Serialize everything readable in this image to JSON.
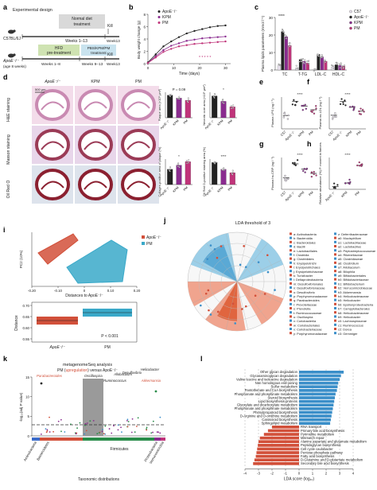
{
  "panels": {
    "a": {
      "letter": "a",
      "title": "Experimental design",
      "normal_diet": "Normal diet",
      "treatment": "treatment",
      "c57": "C57BL/6J",
      "kill": "Kill",
      "weeks_1_13": "Weeks 1–13",
      "week13": "Week13",
      "hfd": "HFD",
      "pretreatment": "pre-treatment",
      "pbs_kpm_pm": "PBS/KPM/PM",
      "apoe": "ApoE⁻/⁻",
      "age": "(age 8 weeks)",
      "weeks_1_8": "Weeks 1–8",
      "weeks_9_13": "Weeks 9–13"
    },
    "b": {
      "letter": "b",
      "ylabel": "Body weight change (g)",
      "xlabel": "Time (days)",
      "legend": [
        "ApoE⁻/⁻",
        "KPM",
        "PM"
      ],
      "yticks": [
        "8",
        "6",
        "4",
        "2",
        "0"
      ],
      "xticks": [
        "0",
        "10",
        "20",
        "30"
      ]
    },
    "c": {
      "letter": "c",
      "ylabel": "Plasma lipids parameters (mmol l⁻¹)",
      "yticks": [
        "30",
        "20",
        "10",
        "0"
      ],
      "categories": [
        "TC",
        "T-TG",
        "LDL-C",
        "HDL-C"
      ],
      "legend": [
        "C57",
        "ApoE⁻/⁻",
        "KPM",
        "PM"
      ]
    },
    "d": {
      "letter": "d",
      "cols": [
        "ApoE⁻/⁻",
        "KPM",
        "PM"
      ],
      "rows": [
        "H&E staining",
        "Masson staining",
        "Oil Red O"
      ],
      "scale": "500 μm",
      "plaque_ylabel": "Plaque area (×10⁵ μm²)",
      "plaque_p": "P = 0.09",
      "necrotic_ylabel": "Necrotic core area (×10⁵ μm²)",
      "collagen_ylabel": "Collagen-positive area of plaque (%)",
      "oilred_ylabel": "Oil Red O-positive staining area (%)",
      "xcats": [
        "ApoE⁻/⁻",
        "KPM",
        "PM"
      ]
    },
    "e": {
      "letter": "e",
      "ylabel": "Plasma LPS (ng l⁻¹)",
      "xcats": [
        "C57",
        "ApoE⁻/⁻",
        "KPM",
        "PM"
      ]
    },
    "f": {
      "letter": "f",
      "ylabel": "Plasma ox-LDL (ng l⁻¹)",
      "xcats": [
        "C57",
        "ApoE⁻/⁻",
        "KPM",
        "PM"
      ]
    },
    "g": {
      "letter": "g",
      "ylabel": "Plasma hs-CRP (ng l⁻¹)",
      "xcats": [
        "C57",
        "ApoE⁻/⁻",
        "KPM",
        "PM"
      ]
    },
    "h": {
      "letter": "h",
      "ylabel": "Relative abundance (%) P. moorei in faeces",
      "xcats": [
        "ApoE⁻/⁻",
        "KPM",
        "PM"
      ]
    },
    "i": {
      "letter": "i",
      "legend": [
        "ApoE⁻/⁻",
        "PM"
      ],
      "ylabel": "PC2 (10%)",
      "xlabel": "Distances to ApoE⁻/⁻",
      "xticks": [
        "-0.20",
        "-0.10",
        "0",
        "0.10",
        "0.20"
      ],
      "dist_label": "Distance",
      "dist_yticks": [
        "0.70",
        "0.65",
        "0.60",
        "0.55"
      ],
      "xcats": [
        "ApoE⁻/⁻",
        "PM"
      ],
      "pval": "P < 0.001"
    },
    "j": {
      "letter": "j",
      "title": "LDA threshold of 3",
      "left_legend": [
        "a: Actinobacteria",
        "b: Bacteroidia",
        "c: Bacteroidales",
        "d: Bacilli",
        "e: Lactobacillales",
        "f: Clostridia",
        "g: Clostridiales",
        "h: Erysipelotrichi",
        "i: Erysipelotrichales",
        "j: Erysipelotrichaceae",
        "k: Turicibacter",
        "l: Deltaproteobacteria",
        "m: Desulfovibrionales",
        "n: Desulfovibrionaceae",
        "o: Desulfovibrio",
        "p: Porphyromonadaceae",
        "q: Parabacteroides",
        "r: Prevotellaceae",
        "s: Prevotella",
        "t: Ruminococcaceae",
        "u: Oscillospira",
        "v: Coriobacteriia",
        "w: Coriobacteriales",
        "x: Coriobacteriaceae",
        "y: Porphyromonadaceae"
      ],
      "right_legend": [
        "z: Deferribacteraceae",
        "a0: Mucispirillum",
        "a1: Lactobacillaceae",
        "a2: Lactobacillus",
        "a3: Peptostreptococcaceae",
        "a4: Rikenellaceae",
        "a5: Clostridiaceae",
        "a6: Clostridium",
        "a7: Allobaculum",
        "a8: Bilophila",
        "a9: Bifidobacteriales",
        "b0: Bifidobacteriaceae",
        "b1: Bifidobacterium",
        "b2: Verrucomicrobiaceae",
        "b3: Akkermansia",
        "b4: Helicobacteraceae",
        "b5: Helicobacter",
        "b6: Epsilonproteobacteria",
        "b7: Campylobacterales",
        "b8: Helicobacteraceae",
        "b9: Helicobacter",
        "c0: Lachnospiraceae",
        "c1: Ruminococcus",
        "c2: Dorea",
        "c3: Gemmiger"
      ]
    },
    "k": {
      "letter": "k",
      "title": "metagenomeSeq analysis",
      "subtitle_pre": "PM (",
      "subtitle_up": "upregulation",
      "subtitle_post": ") versus ApoE⁻/⁻",
      "ylabel": "-log₁₀(adj P value)",
      "yticks": [
        "15",
        "10",
        "5",
        "0"
      ],
      "xlabel": "Taxonomic distributions",
      "annotations": [
        "Parabacteroides",
        "Oscillospira",
        "Ruminococcus",
        "Allobaculum",
        "Desulfovibrio",
        "Helicobacter",
        "Akkermansia"
      ],
      "phyla": [
        "Actinobacteria",
        "Bacteroidetes",
        "Firmicutes",
        "Proteobacteria",
        "Verrucomicrobia"
      ]
    },
    "l": {
      "letter": "l",
      "xlabel": "LDA score (log₁₀)",
      "xticks": [
        "-4",
        "-3",
        "-2",
        "-1",
        "0",
        "1",
        "2",
        "3",
        "4"
      ],
      "pathways_pos": [
        "Other glycan degradation",
        "Glycosaminoglycan degradation",
        "Valine leucine and isoleucine degradation",
        "Non homologous end-joining",
        "Sulfur metabolism",
        "Pantothenate and CoA biosynthesis",
        "Phosphonate and phosphinate metabolism",
        "Steroid biosynthesis",
        "Lipid biosynthesis proteins",
        "Glyoxylate and dicarboxylate metabolism",
        "Phosphonate and phosphinate metabolism",
        "Phenylpropanoid biosynthesis",
        "D-Arginine and D-ornithine metabolism",
        "Carotenoid biosynthesis",
        "Sphingolipid metabolism"
      ],
      "pathways_neg": [
        "RNA transport",
        "Primary bile acid biosynthesis",
        "Pyrimidine metabolism",
        "Mismatch repair",
        "Alanine aspartate and glutamate metabolism",
        "Peptidoglycan biosynthesis",
        "Cell cycle caulobacter",
        "Pentose phosphate pathway",
        "Fatty acid biosynthesis",
        "D-Glutamine and D-glutamate metabolism",
        "Secondary bile acid biosynthesis"
      ]
    }
  },
  "chart_data": [
    {
      "type": "line",
      "panel": "b",
      "xlabel": "Time (days)",
      "ylabel": "Body weight change (g)",
      "x": [
        0,
        3,
        6,
        9,
        12,
        15,
        18,
        21,
        24,
        27,
        30
      ],
      "xlim": [
        0,
        32
      ],
      "ylim": [
        0,
        8
      ],
      "series": [
        {
          "name": "ApoE⁻/⁻",
          "color": "#222222",
          "values": [
            0.2,
            1.5,
            2.8,
            3.6,
            4.3,
            4.9,
            5.3,
            5.6,
            5.9,
            6.1,
            6.2
          ]
        },
        {
          "name": "KPM",
          "color": "#8a2b8f",
          "values": [
            0.1,
            1.2,
            2.2,
            2.9,
            3.3,
            3.7,
            3.9,
            4.1,
            4.2,
            4.3,
            4.4
          ]
        },
        {
          "name": "PM",
          "color": "#c0347a",
          "values": [
            0.1,
            1.0,
            1.9,
            2.4,
            2.8,
            3.0,
            3.2,
            3.3,
            3.4,
            3.5,
            3.6
          ]
        }
      ]
    },
    {
      "type": "bar",
      "panel": "c",
      "categories": [
        "TC",
        "T-TG",
        "LDL-C",
        "HDL-C"
      ],
      "ylim": [
        0,
        30
      ],
      "series": [
        {
          "name": "C57",
          "color": "#e9e2ee",
          "values": [
            2.5,
            1.2,
            0.6,
            1.8
          ]
        },
        {
          "name": "ApoE⁻/⁻",
          "color": "#222222",
          "values": [
            22,
            6,
            9,
            3
          ]
        },
        {
          "name": "KPM",
          "color": "#8a2b8f",
          "values": [
            19,
            5,
            7.5,
            2.6
          ]
        },
        {
          "name": "PM",
          "color": "#c0347a",
          "values": [
            14,
            4,
            5,
            2.2
          ]
        }
      ]
    },
    {
      "type": "bar",
      "panel": "d-plaque",
      "categories": [
        "ApoE⁻/⁻",
        "KPM",
        "PM"
      ],
      "values": [
        3.1,
        2.7,
        2.4
      ]
    },
    {
      "type": "bar",
      "panel": "d-necrotic",
      "categories": [
        "ApoE⁻/⁻",
        "KPM",
        "PM"
      ],
      "values": [
        1.2,
        0.9,
        0.6
      ]
    },
    {
      "type": "bar",
      "panel": "d-collagen",
      "categories": [
        "ApoE⁻/⁻",
        "KPM",
        "PM"
      ],
      "values": [
        30,
        38,
        45
      ]
    },
    {
      "type": "bar",
      "panel": "d-oilred",
      "categories": [
        "ApoE⁻/⁻",
        "KPM",
        "PM"
      ],
      "values": [
        26,
        18,
        14
      ]
    },
    {
      "type": "bar",
      "panel": "e",
      "categories": [
        "C57",
        "ApoE⁻/⁻",
        "KPM",
        "PM"
      ],
      "values": [
        250,
        520,
        430,
        360
      ]
    },
    {
      "type": "bar",
      "panel": "f",
      "categories": [
        "C57",
        "ApoE⁻/⁻",
        "KPM",
        "PM"
      ],
      "values": [
        60,
        120,
        95,
        78
      ]
    },
    {
      "type": "bar",
      "panel": "g",
      "categories": [
        "C57",
        "ApoE⁻/⁻",
        "KPM",
        "PM"
      ],
      "values": [
        1.1,
        2.4,
        1.9,
        1.5
      ]
    },
    {
      "type": "bar",
      "panel": "h",
      "categories": [
        "ApoE⁻/⁻",
        "KPM",
        "PM"
      ],
      "values": [
        0.05,
        0.12,
        0.45
      ]
    },
    {
      "type": "bar",
      "panel": "l",
      "xlabel": "LDA score (log₁₀)",
      "xlim": [
        -4,
        4
      ],
      "positive_color": "#3b8fc9",
      "negative_color": "#d2503a",
      "positive_values": [
        3.3,
        3.1,
        3.0,
        2.9,
        2.85,
        2.8,
        2.7,
        2.65,
        2.6,
        2.55,
        2.5,
        2.45,
        2.4,
        2.35,
        2.3
      ],
      "negative_values": [
        -2.0,
        -2.3,
        -2.6,
        -2.9,
        -3.0,
        -3.05,
        -3.1,
        -3.15,
        -3.2,
        -3.3,
        -3.4
      ]
    }
  ]
}
